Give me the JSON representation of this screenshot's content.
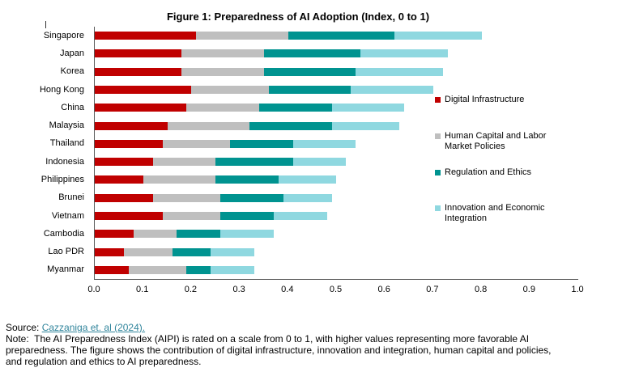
{
  "title": "Figure 1: Preparedness of AI Adoption (Index, 0 to 1)",
  "colors": {
    "digital_infrastructure": "#C00000",
    "human_capital": "#BFBFBF",
    "regulation_ethics": "#009390",
    "innovation_integration": "#8FD8E0",
    "axis": "#595959",
    "link": "#31859C"
  },
  "chart_data": {
    "type": "bar",
    "orientation": "horizontal",
    "stacked": true,
    "title": "Figure 1: Preparedness of AI Adoption (Index, 0 to 1)",
    "categories": [
      "Singapore",
      "Japan",
      "Korea",
      "Hong Kong",
      "China",
      "Malaysia",
      "Thailand",
      "Indonesia",
      "Philippines",
      "Brunei",
      "Vietnam",
      "Cambodia",
      "Lao PDR",
      "Myanmar"
    ],
    "series": [
      {
        "name": "Digital Infrastructure",
        "color": "#C00000",
        "values": [
          0.21,
          0.18,
          0.18,
          0.2,
          0.19,
          0.15,
          0.14,
          0.12,
          0.1,
          0.12,
          0.14,
          0.08,
          0.06,
          0.07
        ]
      },
      {
        "name": "Human Capital and Labor Market Policies",
        "color": "#BFBFBF",
        "values": [
          0.19,
          0.17,
          0.17,
          0.16,
          0.15,
          0.17,
          0.14,
          0.13,
          0.15,
          0.14,
          0.12,
          0.09,
          0.1,
          0.12
        ]
      },
      {
        "name": "Regulation and Ethics",
        "color": "#009390",
        "values": [
          0.22,
          0.2,
          0.19,
          0.17,
          0.15,
          0.17,
          0.13,
          0.16,
          0.13,
          0.13,
          0.11,
          0.09,
          0.08,
          0.05
        ]
      },
      {
        "name": "Innovation and Economic Integration",
        "color": "#8FD8E0",
        "values": [
          0.18,
          0.18,
          0.18,
          0.17,
          0.15,
          0.14,
          0.13,
          0.11,
          0.12,
          0.1,
          0.11,
          0.11,
          0.09,
          0.09
        ]
      }
    ],
    "totals": [
      0.8,
      0.73,
      0.72,
      0.7,
      0.64,
      0.63,
      0.54,
      0.52,
      0.5,
      0.49,
      0.48,
      0.37,
      0.33,
      0.33
    ],
    "xlim": [
      0,
      1
    ],
    "xticks": [
      "0.0",
      "0.1",
      "0.2",
      "0.3",
      "0.4",
      "0.5",
      "0.6",
      "0.7",
      "0.8",
      "0.9",
      "1.0"
    ],
    "grid": false,
    "legend_position": "right-inside"
  },
  "footer": {
    "source_label": "Source: ",
    "source_link": "Cazzaniga et. al (2024).",
    "note_lines": [
      "Note:  The AI Preparedness Index (AIPI) is rated on a scale from 0 to 1, with higher values representing more favorable AI",
      "preparedness. The figure shows the contribution of digital infrastructure, innovation and integration, human capital and policies,",
      "and regulation and ethics to AI preparedness."
    ]
  }
}
